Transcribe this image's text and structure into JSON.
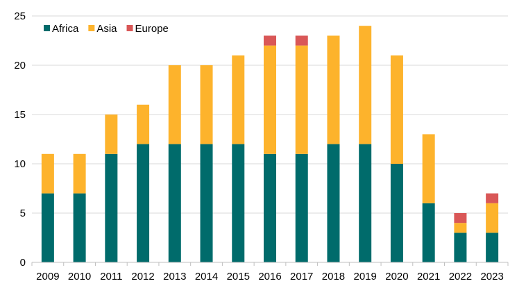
{
  "chart_data": {
    "type": "bar",
    "stacked": true,
    "categories": [
      "2009",
      "2010",
      "2011",
      "2012",
      "2013",
      "2014",
      "2015",
      "2016",
      "2017",
      "2018",
      "2019",
      "2020",
      "2021",
      "2022",
      "2023"
    ],
    "series": [
      {
        "name": "Africa",
        "color": "#006B6B",
        "values": [
          7,
          7,
          11,
          12,
          12,
          12,
          12,
          11,
          11,
          12,
          12,
          10,
          6,
          3,
          3
        ]
      },
      {
        "name": "Asia",
        "color": "#FDB32C",
        "values": [
          4,
          4,
          4,
          4,
          8,
          8,
          9,
          11,
          11,
          11,
          12,
          11,
          7,
          1,
          3
        ]
      },
      {
        "name": "Europe",
        "color": "#D95757",
        "values": [
          0,
          0,
          0,
          0,
          0,
          0,
          0,
          1,
          1,
          0,
          0,
          0,
          0,
          1,
          1
        ]
      }
    ],
    "ylim": [
      0,
      25
    ],
    "yticks": [
      0,
      5,
      10,
      15,
      20,
      25
    ],
    "gridlines": true,
    "legend_position": "top-left",
    "title": "",
    "xlabel": "",
    "ylabel": ""
  }
}
